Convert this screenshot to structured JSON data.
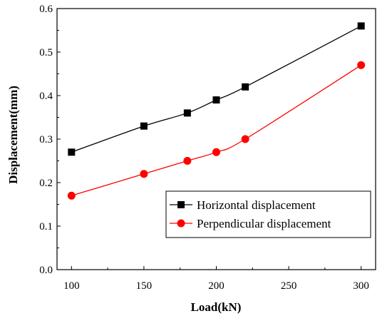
{
  "chart_data": {
    "type": "line",
    "xlabel": "Load(kN)",
    "ylabel": "Displacement(mm)",
    "xlim": [
      90,
      310
    ],
    "ylim": [
      0.0,
      0.6
    ],
    "xticks": [
      "100",
      "150",
      "200",
      "250",
      "300"
    ],
    "yticks": [
      "0.0",
      "0.1",
      "0.2",
      "0.3",
      "0.4",
      "0.5",
      "0.6"
    ],
    "x": [
      100,
      150,
      180,
      200,
      220,
      300
    ],
    "series": [
      {
        "name": "Horizontal displacement",
        "color": "#000000",
        "marker": "square",
        "values": [
          0.27,
          0.33,
          0.36,
          0.39,
          0.42,
          0.56
        ]
      },
      {
        "name": "Perpendicular displacement",
        "color": "#ff0000",
        "marker": "circle",
        "values": [
          0.17,
          0.22,
          0.25,
          0.27,
          0.3,
          0.47
        ]
      }
    ],
    "legend_position": "lower-right",
    "grid": false
  }
}
